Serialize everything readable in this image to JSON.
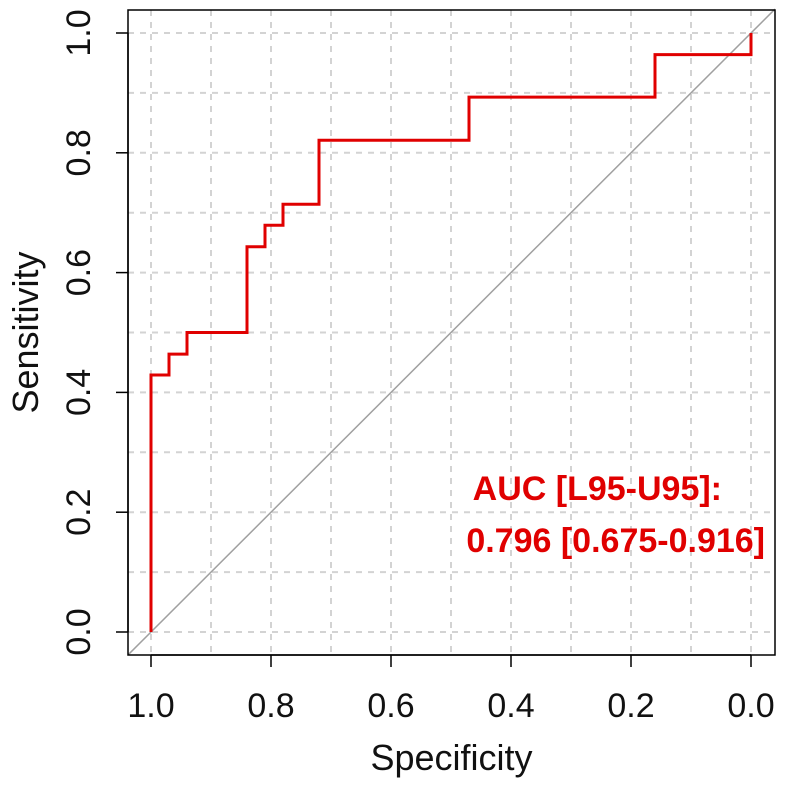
{
  "chart_data": {
    "type": "line",
    "title": "",
    "xlabel": "Specificity",
    "ylabel": "Sensitivity",
    "xlim": [
      1.0,
      0.0
    ],
    "ylim": [
      0.0,
      1.0
    ],
    "x_reversed": true,
    "grid": true,
    "x_ticks": [
      1.0,
      0.8,
      0.6,
      0.4,
      0.2,
      0.0
    ],
    "x_tick_labels": [
      "1.0",
      "0.8",
      "0.6",
      "0.4",
      "0.2",
      "0.0"
    ],
    "y_ticks": [
      0.0,
      0.2,
      0.4,
      0.6,
      0.8,
      1.0
    ],
    "y_tick_labels": [
      "0.0",
      "0.2",
      "0.4",
      "0.6",
      "0.8",
      "1.0"
    ],
    "series": [
      {
        "color": "#e00000",
        "x": [
          1.0,
          1.0,
          0.97,
          0.97,
          0.94,
          0.94,
          0.84,
          0.84,
          0.81,
          0.81,
          0.78,
          0.78,
          0.72,
          0.72,
          0.47,
          0.47,
          0.16,
          0.16,
          0.0,
          0.0
        ],
        "y": [
          0.0,
          0.429,
          0.429,
          0.464,
          0.464,
          0.5,
          0.5,
          0.643,
          0.643,
          0.679,
          0.679,
          0.714,
          0.714,
          0.821,
          0.821,
          0.893,
          0.893,
          0.964,
          0.964,
          1.0
        ]
      }
    ],
    "reference_line": {
      "x": [
        1.0,
        0.0
      ],
      "y": [
        0.0,
        1.0
      ],
      "color": "#a0a0a0"
    },
    "annotation": {
      "line1": "AUC [L95-U95]:",
      "line2": "0.796 [0.675-0.916]",
      "color": "#e00000"
    }
  }
}
